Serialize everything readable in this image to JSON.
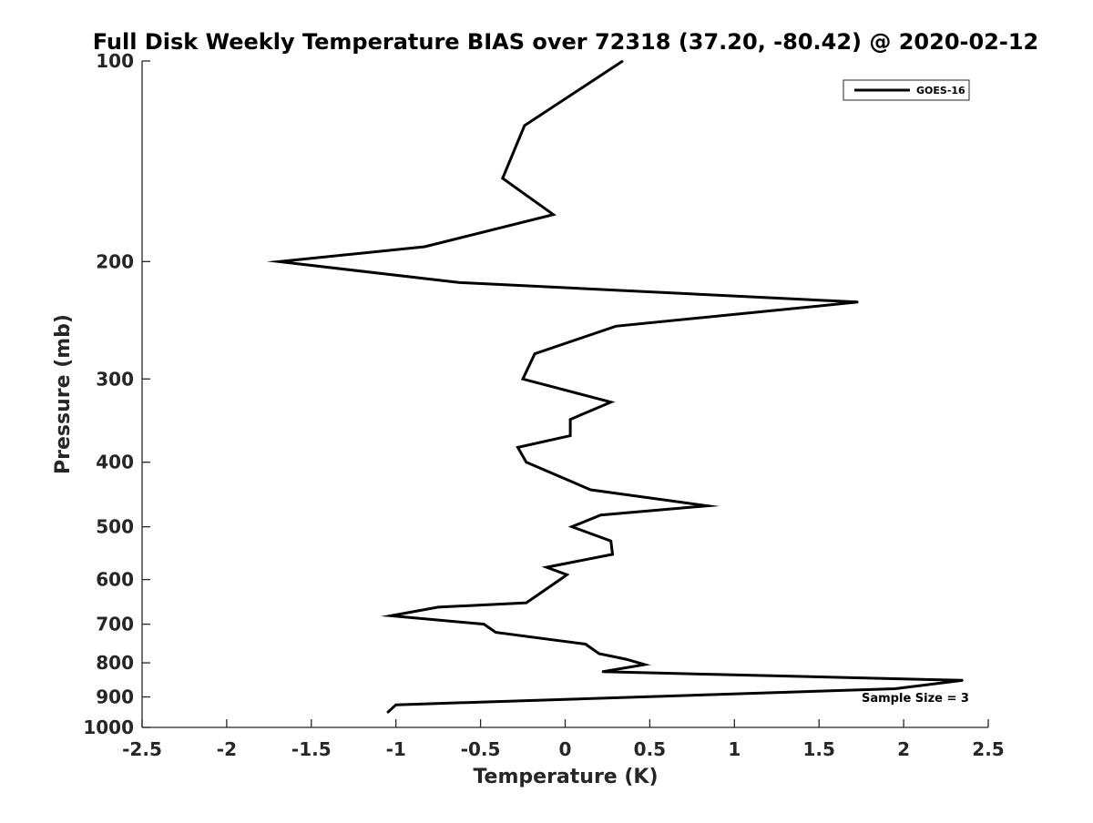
{
  "chart_data": {
    "type": "line",
    "title": "Full Disk Weekly Temperature BIAS over 72318 (37.20, -80.42) @ 2020-02-12",
    "xlabel": "Temperature (K)",
    "ylabel": "Pressure (mb)",
    "xlim": [
      -2.5,
      2.5
    ],
    "ylim": [
      100,
      1000
    ],
    "y_scale": "log",
    "y_reversed": true,
    "grid": false,
    "legend_position": "top-right",
    "x_ticks": [
      -2.5,
      -2,
      -1.5,
      -1,
      -0.5,
      0,
      0.5,
      1,
      1.5,
      2,
      2.5
    ],
    "x_tick_labels": [
      "-2.5",
      "-2",
      "-1.5",
      "-1",
      "-0.5",
      "0",
      "0.5",
      "1",
      "1.5",
      "2",
      "2.5"
    ],
    "y_ticks": [
      100,
      200,
      300,
      400,
      500,
      600,
      700,
      800,
      900,
      1000
    ],
    "y_tick_labels": [
      "100",
      "200",
      "300",
      "400",
      "500",
      "600",
      "700",
      "800",
      "900",
      "1000"
    ],
    "series": [
      {
        "name": "GOES-16",
        "color": "#000000",
        "points": [
          {
            "x": 0.34,
            "y": 100
          },
          {
            "x": -0.24,
            "y": 125
          },
          {
            "x": -0.37,
            "y": 150
          },
          {
            "x": -0.07,
            "y": 170
          },
          {
            "x": -0.83,
            "y": 190
          },
          {
            "x": -1.69,
            "y": 200
          },
          {
            "x": -0.63,
            "y": 215
          },
          {
            "x": 1.73,
            "y": 230
          },
          {
            "x": 0.3,
            "y": 250
          },
          {
            "x": -0.18,
            "y": 275
          },
          {
            "x": -0.25,
            "y": 300
          },
          {
            "x": 0.27,
            "y": 325
          },
          {
            "x": 0.03,
            "y": 345
          },
          {
            "x": 0.03,
            "y": 365
          },
          {
            "x": -0.28,
            "y": 380
          },
          {
            "x": -0.23,
            "y": 400
          },
          {
            "x": 0.15,
            "y": 440
          },
          {
            "x": 0.84,
            "y": 465
          },
          {
            "x": 0.21,
            "y": 480
          },
          {
            "x": 0.04,
            "y": 500
          },
          {
            "x": 0.27,
            "y": 525
          },
          {
            "x": 0.28,
            "y": 550
          },
          {
            "x": -0.11,
            "y": 575
          },
          {
            "x": 0.01,
            "y": 590
          },
          {
            "x": -0.03,
            "y": 600
          },
          {
            "x": -0.23,
            "y": 650
          },
          {
            "x": -0.75,
            "y": 660
          },
          {
            "x": -1.03,
            "y": 680
          },
          {
            "x": -0.48,
            "y": 700
          },
          {
            "x": -0.41,
            "y": 720
          },
          {
            "x": 0.12,
            "y": 750
          },
          {
            "x": 0.2,
            "y": 775
          },
          {
            "x": 0.36,
            "y": 790
          },
          {
            "x": 0.47,
            "y": 805
          },
          {
            "x": 0.22,
            "y": 825
          },
          {
            "x": 2.35,
            "y": 850
          },
          {
            "x": 1.95,
            "y": 875
          },
          {
            "x": -1.0,
            "y": 925
          },
          {
            "x": -1.05,
            "y": 950
          }
        ]
      }
    ],
    "annotation": "Sample Size = 3"
  }
}
